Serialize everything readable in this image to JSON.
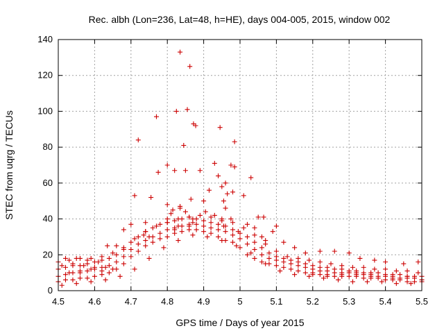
{
  "chart_data": {
    "type": "scatter",
    "title": "Rec. albh (Lon=236, Lat=48, h=HE), days 004-005, 2015, window 002",
    "xlabel": "GPS time / Days of year 2015",
    "ylabel": "STEC from uqrg / TECUs",
    "xlim": [
      4.5,
      5.5
    ],
    "ylim": [
      0,
      140
    ],
    "xticks": [
      "4.5",
      "4.6",
      "4.7",
      "4.8",
      "4.9",
      "5",
      "5.1",
      "5.2",
      "5.3",
      "5.4",
      "5.5"
    ],
    "yticks": [
      "0",
      "20",
      "40",
      "60",
      "80",
      "100",
      "120",
      "140"
    ],
    "grid": true,
    "marker": "plus",
    "color": "#cc0000",
    "series": [
      {
        "name": "",
        "x": [
          4.835,
          4.862,
          4.825,
          4.872,
          4.77,
          4.945,
          4.72,
          4.985,
          4.855,
          4.845,
          4.878,
          4.8,
          4.93,
          4.89,
          4.975,
          4.94,
          4.82,
          4.775,
          4.85,
          4.96,
          4.985,
          5.03,
          4.71,
          4.755,
          4.915,
          4.95,
          4.98,
          4.965,
          4.8,
          4.835,
          4.865,
          4.955,
          4.815,
          4.9,
          5.01,
          4.96,
          5.05,
          4.81,
          4.835,
          4.85,
          4.8,
          4.905,
          4.93,
          4.87,
          5.065,
          4.95,
          4.975,
          4.7,
          4.74,
          5.02,
          5.1,
          5.04,
          4.68,
          4.83,
          4.86,
          4.87,
          5.09,
          4.735,
          4.995,
          4.75,
          5.07,
          4.66,
          4.635,
          4.82,
          4.955,
          5.06,
          5.12,
          5.15,
          5.18,
          5.22,
          5.26,
          5.3,
          5.33,
          5.37,
          5.4,
          5.45,
          5.49,
          4.52,
          4.55,
          4.58,
          4.61,
          4.51,
          4.54,
          4.57,
          4.6,
          4.63,
          4.53,
          4.56,
          4.59,
          4.62,
          4.65,
          5.2,
          5.24,
          5.28,
          5.32,
          5.36,
          5.42,
          5.46,
          5.5
        ],
        "y": [
          133,
          125,
          100,
          93,
          97,
          91,
          84,
          83,
          101,
          81,
          92,
          70,
          71,
          67,
          70,
          64,
          67,
          66,
          67,
          60,
          69,
          63,
          53,
          52,
          56,
          58,
          55,
          54,
          48,
          47,
          51,
          50,
          45,
          50,
          53,
          46,
          41,
          43,
          46,
          44,
          40,
          44,
          42,
          40,
          41,
          39,
          40,
          37,
          38,
          37,
          36,
          35,
          34,
          36,
          36,
          38,
          33,
          31,
          33,
          30,
          28,
          25,
          25,
          34,
          36,
          30,
          27,
          24,
          21,
          22,
          22,
          21,
          18,
          17,
          16,
          15,
          16,
          18,
          18,
          17,
          16,
          14,
          15,
          14,
          13,
          13,
          10,
          11,
          12,
          11,
          12,
          10,
          9,
          9,
          10,
          8,
          7,
          8,
          6
        ]
      },
      {
        "name": "",
        "x": [
          4.5,
          4.52,
          4.54,
          4.56,
          4.58,
          4.6,
          4.62,
          4.64,
          4.66,
          4.68,
          4.7,
          4.72,
          4.74,
          4.76,
          4.78,
          4.8,
          4.82,
          4.84,
          4.86,
          4.88,
          4.9,
          4.92,
          4.94,
          4.96,
          4.98,
          5.0,
          5.02,
          5.04,
          5.06,
          5.08,
          5.1,
          5.12,
          5.14,
          5.16,
          5.18,
          5.2,
          5.22,
          5.24,
          5.26,
          5.28,
          5.3,
          5.32,
          5.34,
          5.36,
          5.38,
          5.4,
          5.42,
          5.44,
          5.46,
          5.48,
          5.5
        ],
        "y": [
          5,
          6,
          6,
          7,
          7,
          8,
          9,
          10,
          12,
          15,
          19,
          22,
          25,
          27,
          29,
          30,
          32,
          33,
          34,
          34,
          33,
          32,
          30,
          28,
          27,
          24,
          20,
          18,
          16,
          15,
          14,
          13,
          12,
          11,
          10,
          9,
          9,
          8,
          8,
          8,
          8,
          8,
          7,
          7,
          7,
          6,
          6,
          6,
          5,
          5,
          5
        ]
      },
      {
        "name": "",
        "x": [
          4.5,
          4.52,
          4.54,
          4.56,
          4.58,
          4.6,
          4.62,
          4.64,
          4.66,
          4.68,
          4.7,
          4.72,
          4.74,
          4.76,
          4.78,
          4.8,
          4.82,
          4.84,
          4.86,
          4.88,
          4.9,
          4.92,
          4.94,
          4.96,
          4.98,
          5.0,
          5.02,
          5.04,
          5.06,
          5.08,
          5.1,
          5.12,
          5.14,
          5.16,
          5.18,
          5.2,
          5.22,
          5.24,
          5.26,
          5.28,
          5.3,
          5.32,
          5.34,
          5.36,
          5.38,
          5.4,
          5.42,
          5.44,
          5.46,
          5.48,
          5.5
        ],
        "y": [
          8,
          9,
          10,
          10,
          11,
          12,
          13,
          14,
          16,
          19,
          23,
          26,
          28,
          30,
          32,
          34,
          35,
          36,
          37,
          37,
          36,
          35,
          34,
          33,
          31,
          29,
          26,
          23,
          20,
          18,
          17,
          16,
          15,
          14,
          13,
          12,
          11,
          11,
          10,
          10,
          10,
          9,
          9,
          9,
          8,
          8,
          8,
          7,
          7,
          7,
          6
        ]
      },
      {
        "name": "",
        "x": [
          4.5,
          4.52,
          4.54,
          4.56,
          4.58,
          4.6,
          4.62,
          4.64,
          4.66,
          4.68,
          4.7,
          4.72,
          4.74,
          4.76,
          4.78,
          4.8,
          4.82,
          4.84,
          4.86,
          4.88,
          4.9,
          4.92,
          4.94,
          4.96,
          4.98,
          5.0,
          5.02,
          5.04,
          5.06,
          5.08,
          5.1,
          5.12,
          5.14,
          5.16,
          5.18,
          5.2,
          5.22,
          5.24,
          5.26,
          5.28,
          5.3,
          5.32,
          5.34,
          5.36,
          5.38,
          5.4,
          5.42,
          5.44,
          5.46,
          5.48,
          5.5
        ],
        "y": [
          12,
          13,
          14,
          14,
          15,
          16,
          17,
          18,
          20,
          23,
          27,
          30,
          33,
          35,
          37,
          38,
          39,
          40,
          41,
          40,
          39,
          38,
          37,
          36,
          34,
          32,
          30,
          27,
          24,
          21,
          19,
          18,
          17,
          16,
          15,
          14,
          13,
          13,
          12,
          12,
          11,
          11,
          10,
          10,
          10,
          9,
          9,
          9,
          8,
          8,
          8
        ]
      },
      {
        "name": "",
        "x": [
          4.5,
          4.53,
          4.56,
          4.59,
          4.62,
          4.65,
          4.68,
          4.71,
          4.74,
          4.77,
          4.8,
          4.83,
          4.86,
          4.89,
          4.92,
          4.95,
          4.98,
          5.01,
          5.04,
          5.07,
          5.1,
          5.13,
          5.16,
          5.19,
          5.22,
          5.25,
          5.28,
          5.31,
          5.34,
          5.37,
          5.4,
          5.43,
          5.46,
          5.49
        ],
        "y": [
          16,
          17,
          18,
          18,
          19,
          21,
          24,
          29,
          33,
          36,
          38,
          40,
          41,
          42,
          41,
          40,
          38,
          35,
          31,
          26,
          22,
          19,
          18,
          17,
          16,
          15,
          14,
          13,
          13,
          12,
          12,
          11,
          11,
          10
        ]
      },
      {
        "name": "",
        "x": [
          4.51,
          4.55,
          4.59,
          4.63,
          4.67,
          4.71,
          4.75,
          4.79,
          4.83,
          4.87,
          4.91,
          4.95,
          4.99,
          5.03,
          5.07,
          5.11,
          5.15,
          5.19,
          5.23,
          5.27,
          5.31,
          5.35,
          5.39,
          5.43,
          5.47
        ],
        "y": [
          3,
          4,
          5,
          6,
          8,
          12,
          18,
          24,
          28,
          31,
          30,
          28,
          25,
          21,
          15,
          11,
          9,
          8,
          7,
          6,
          5,
          5,
          5,
          4,
          4
        ]
      }
    ]
  }
}
